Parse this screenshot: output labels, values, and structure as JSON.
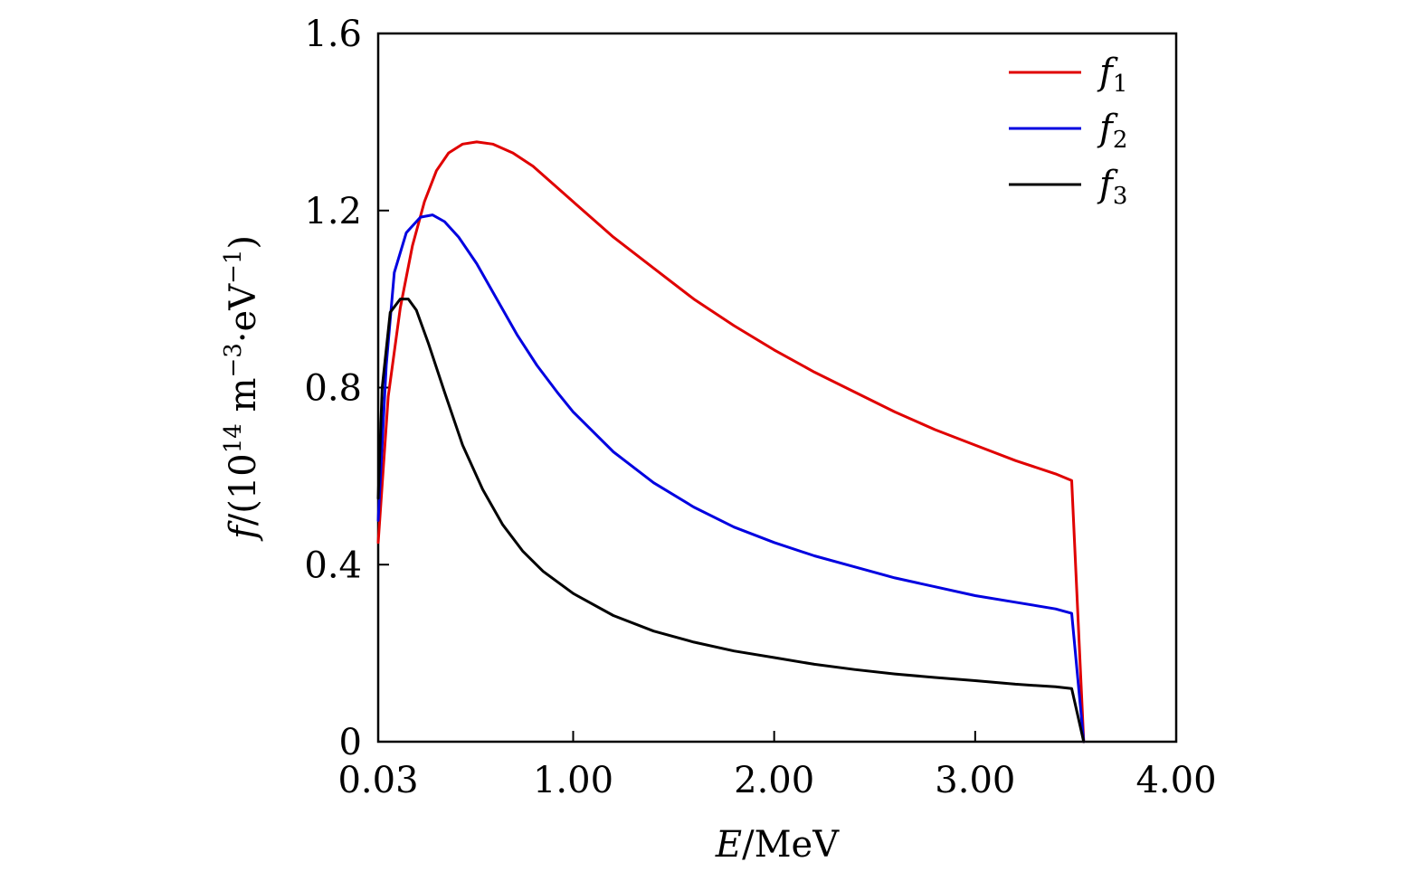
{
  "chart_data": {
    "type": "line",
    "title": "",
    "xlabel": "E/MeV",
    "ylabel": "f/(10^14 m^-3·eV^-1)",
    "xlim": [
      0.03,
      4.0
    ],
    "ylim": [
      0,
      1.6
    ],
    "x_ticks": [
      0.03,
      1.0,
      2.0,
      3.0,
      4.0
    ],
    "x_tick_labels": [
      "0.03",
      "1.00",
      "2.00",
      "3.00",
      "4.00"
    ],
    "y_ticks": [
      0,
      0.4,
      0.8,
      1.2,
      1.6
    ],
    "y_tick_labels": [
      "0",
      "0.4",
      "0.8",
      "1.2",
      "1.6"
    ],
    "grid": false,
    "legend_position": "top-right",
    "series": [
      {
        "name": "f1",
        "color": "#e00000",
        "points": [
          [
            0.03,
            0.45
          ],
          [
            0.08,
            0.78
          ],
          [
            0.14,
            0.98
          ],
          [
            0.2,
            1.12
          ],
          [
            0.26,
            1.22
          ],
          [
            0.32,
            1.29
          ],
          [
            0.38,
            1.33
          ],
          [
            0.45,
            1.35
          ],
          [
            0.52,
            1.355
          ],
          [
            0.6,
            1.35
          ],
          [
            0.7,
            1.33
          ],
          [
            0.8,
            1.3
          ],
          [
            0.9,
            1.26
          ],
          [
            1.0,
            1.22
          ],
          [
            1.2,
            1.14
          ],
          [
            1.4,
            1.07
          ],
          [
            1.6,
            1.0
          ],
          [
            1.8,
            0.94
          ],
          [
            2.0,
            0.885
          ],
          [
            2.2,
            0.835
          ],
          [
            2.4,
            0.79
          ],
          [
            2.6,
            0.745
          ],
          [
            2.8,
            0.705
          ],
          [
            3.0,
            0.67
          ],
          [
            3.2,
            0.635
          ],
          [
            3.4,
            0.605
          ],
          [
            3.48,
            0.59
          ],
          [
            3.54,
            0.0
          ]
        ]
      },
      {
        "name": "f2",
        "color": "#0000e0",
        "points": [
          [
            0.03,
            0.5
          ],
          [
            0.07,
            0.85
          ],
          [
            0.11,
            1.06
          ],
          [
            0.17,
            1.15
          ],
          [
            0.24,
            1.185
          ],
          [
            0.3,
            1.19
          ],
          [
            0.36,
            1.175
          ],
          [
            0.43,
            1.14
          ],
          [
            0.52,
            1.08
          ],
          [
            0.62,
            1.0
          ],
          [
            0.72,
            0.92
          ],
          [
            0.82,
            0.85
          ],
          [
            0.92,
            0.79
          ],
          [
            1.0,
            0.745
          ],
          [
            1.2,
            0.655
          ],
          [
            1.4,
            0.585
          ],
          [
            1.6,
            0.53
          ],
          [
            1.8,
            0.485
          ],
          [
            2.0,
            0.45
          ],
          [
            2.2,
            0.42
          ],
          [
            2.4,
            0.395
          ],
          [
            2.6,
            0.37
          ],
          [
            2.8,
            0.35
          ],
          [
            3.0,
            0.33
          ],
          [
            3.2,
            0.315
          ],
          [
            3.4,
            0.3
          ],
          [
            3.48,
            0.29
          ],
          [
            3.54,
            0.0
          ]
        ]
      },
      {
        "name": "f3",
        "color": "#000000",
        "points": [
          [
            0.03,
            0.55
          ],
          [
            0.05,
            0.8
          ],
          [
            0.09,
            0.97
          ],
          [
            0.14,
            1.0
          ],
          [
            0.18,
            1.0
          ],
          [
            0.22,
            0.975
          ],
          [
            0.28,
            0.9
          ],
          [
            0.36,
            0.79
          ],
          [
            0.45,
            0.67
          ],
          [
            0.55,
            0.57
          ],
          [
            0.65,
            0.49
          ],
          [
            0.75,
            0.43
          ],
          [
            0.85,
            0.385
          ],
          [
            1.0,
            0.335
          ],
          [
            1.2,
            0.285
          ],
          [
            1.4,
            0.25
          ],
          [
            1.6,
            0.225
          ],
          [
            1.8,
            0.205
          ],
          [
            2.0,
            0.19
          ],
          [
            2.2,
            0.175
          ],
          [
            2.4,
            0.163
          ],
          [
            2.6,
            0.153
          ],
          [
            2.8,
            0.145
          ],
          [
            3.0,
            0.138
          ],
          [
            3.2,
            0.13
          ],
          [
            3.4,
            0.124
          ],
          [
            3.48,
            0.12
          ],
          [
            3.54,
            0.0
          ]
        ]
      }
    ]
  }
}
